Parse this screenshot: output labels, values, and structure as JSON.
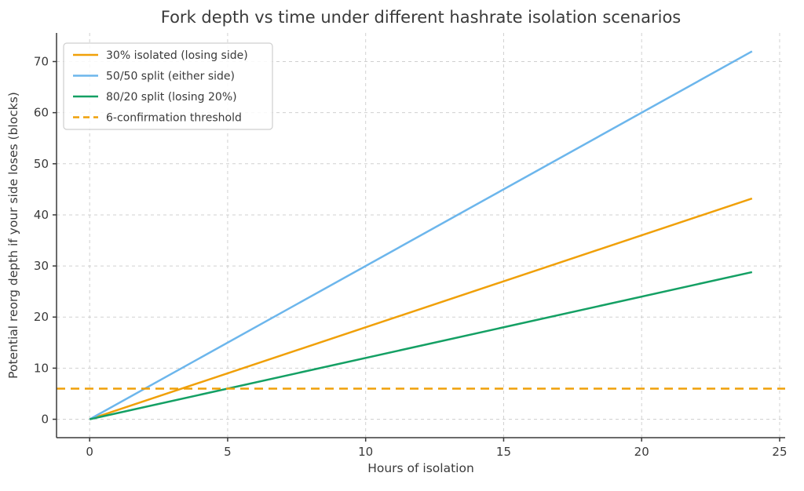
{
  "chart_data": {
    "type": "line",
    "title": "Fork depth vs time under different hashrate isolation scenarios",
    "xlabel": "Hours of isolation",
    "ylabel": "Potential reorg depth if your side loses (blocks)",
    "xlim": [
      -1.2,
      25.2
    ],
    "ylim": [
      -3.6,
      75.6
    ],
    "x_ticks": [
      0,
      5,
      10,
      15,
      20,
      25
    ],
    "y_ticks": [
      0,
      10,
      20,
      30,
      40,
      50,
      60,
      70
    ],
    "grid": true,
    "legend_position": "upper-left",
    "series": [
      {
        "name": "30% isolated (losing side)",
        "color": "#F0A008",
        "style": "solid",
        "x": [
          0,
          24
        ],
        "y": [
          0,
          43.2
        ]
      },
      {
        "name": "50/50 split (either side)",
        "color": "#6CB6EC",
        "style": "solid",
        "x": [
          0,
          24
        ],
        "y": [
          0,
          72
        ]
      },
      {
        "name": "80/20 split (losing 20%)",
        "color": "#14A064",
        "style": "solid",
        "x": [
          0,
          24
        ],
        "y": [
          0,
          28.8
        ]
      },
      {
        "name": "6-confirmation threshold",
        "color": "#F0A008",
        "style": "dashed",
        "x": [
          -1.2,
          25.2
        ],
        "y": [
          6,
          6
        ]
      }
    ],
    "style": {
      "grid_color": "#CCCCCC",
      "spine_color": "#3A3A3A",
      "text_color": "#3A3A3A",
      "legend_border_color": "#CFCFCF",
      "legend_bg": "#FFFFFF",
      "background": "#FFFFFF"
    }
  }
}
